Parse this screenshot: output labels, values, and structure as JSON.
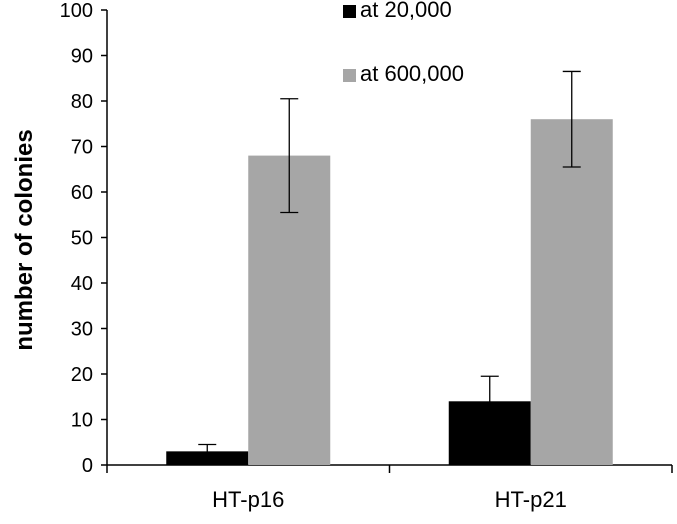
{
  "chart_data": {
    "type": "bar",
    "categories": [
      "HT-p16",
      "HT-p21"
    ],
    "series": [
      {
        "name": "at 20,000",
        "values": [
          3,
          14
        ],
        "errors": [
          1.5,
          5.5
        ],
        "color": "#000000"
      },
      {
        "name": "at 600,000",
        "values": [
          68,
          76
        ],
        "errors": [
          12.5,
          10.5
        ],
        "color": "#a6a6a6"
      }
    ],
    "ylabel": "number of colonies",
    "ylim": [
      0,
      100
    ],
    "yticks": [
      0,
      10,
      20,
      30,
      40,
      50,
      60,
      70,
      80,
      90,
      100
    ],
    "grid": false,
    "legend_position": "top-right"
  }
}
